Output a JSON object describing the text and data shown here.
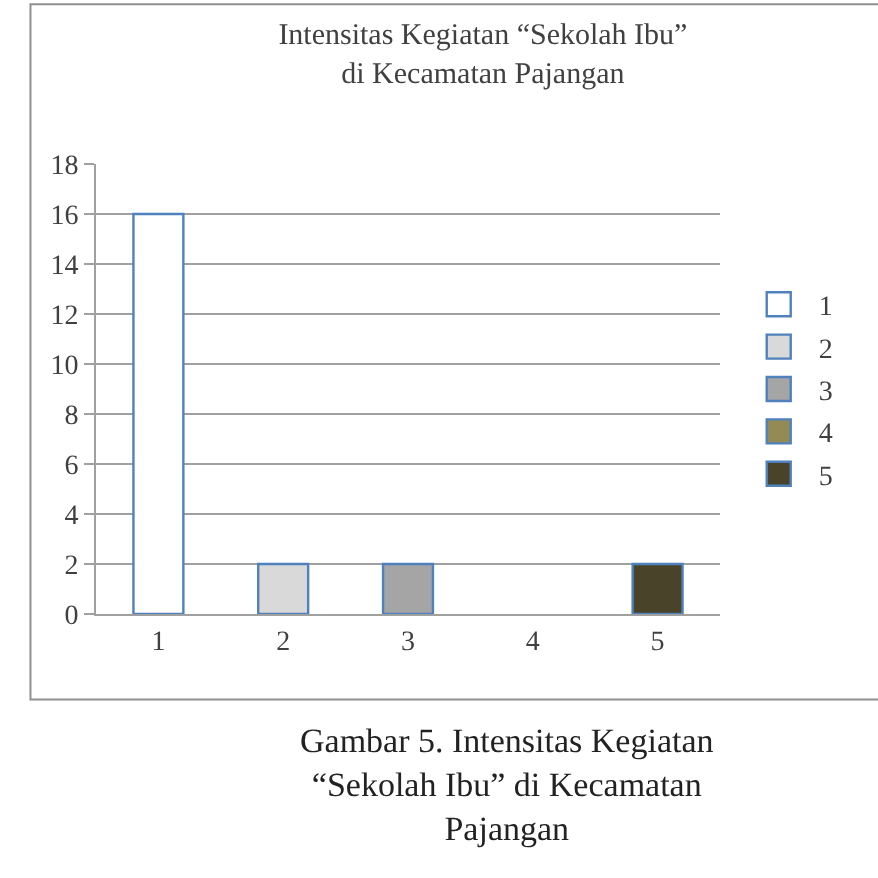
{
  "chart_data": {
    "type": "bar",
    "title": "Intensitas Kegiatan “Sekolah Ibu”\ndi Kecamatan Pajangan",
    "categories": [
      "1",
      "2",
      "3",
      "4",
      "5"
    ],
    "series": [
      {
        "name": "1",
        "color": "#ffffff",
        "values": [
          16,
          null,
          null,
          null,
          null
        ]
      },
      {
        "name": "2",
        "color": "#d9d9d9",
        "values": [
          null,
          2,
          null,
          null,
          null
        ]
      },
      {
        "name": "3",
        "color": "#a5a5a5",
        "values": [
          null,
          null,
          2,
          null,
          null
        ]
      },
      {
        "name": "4",
        "color": "#948a54",
        "values": [
          null,
          null,
          null,
          null,
          null
        ]
      },
      {
        "name": "5",
        "color": "#494429",
        "values": [
          null,
          null,
          null,
          null,
          2
        ]
      }
    ],
    "ylim": [
      0,
      18
    ],
    "yticks": [
      0,
      2,
      4,
      6,
      8,
      10,
      12,
      14,
      16,
      18
    ],
    "grid": "y",
    "legend": "right",
    "annotations": [
      "Gambar 5. Intensitas Kegiatan “Sekolah Ibu” di Kecamatan Pajangan"
    ]
  }
}
